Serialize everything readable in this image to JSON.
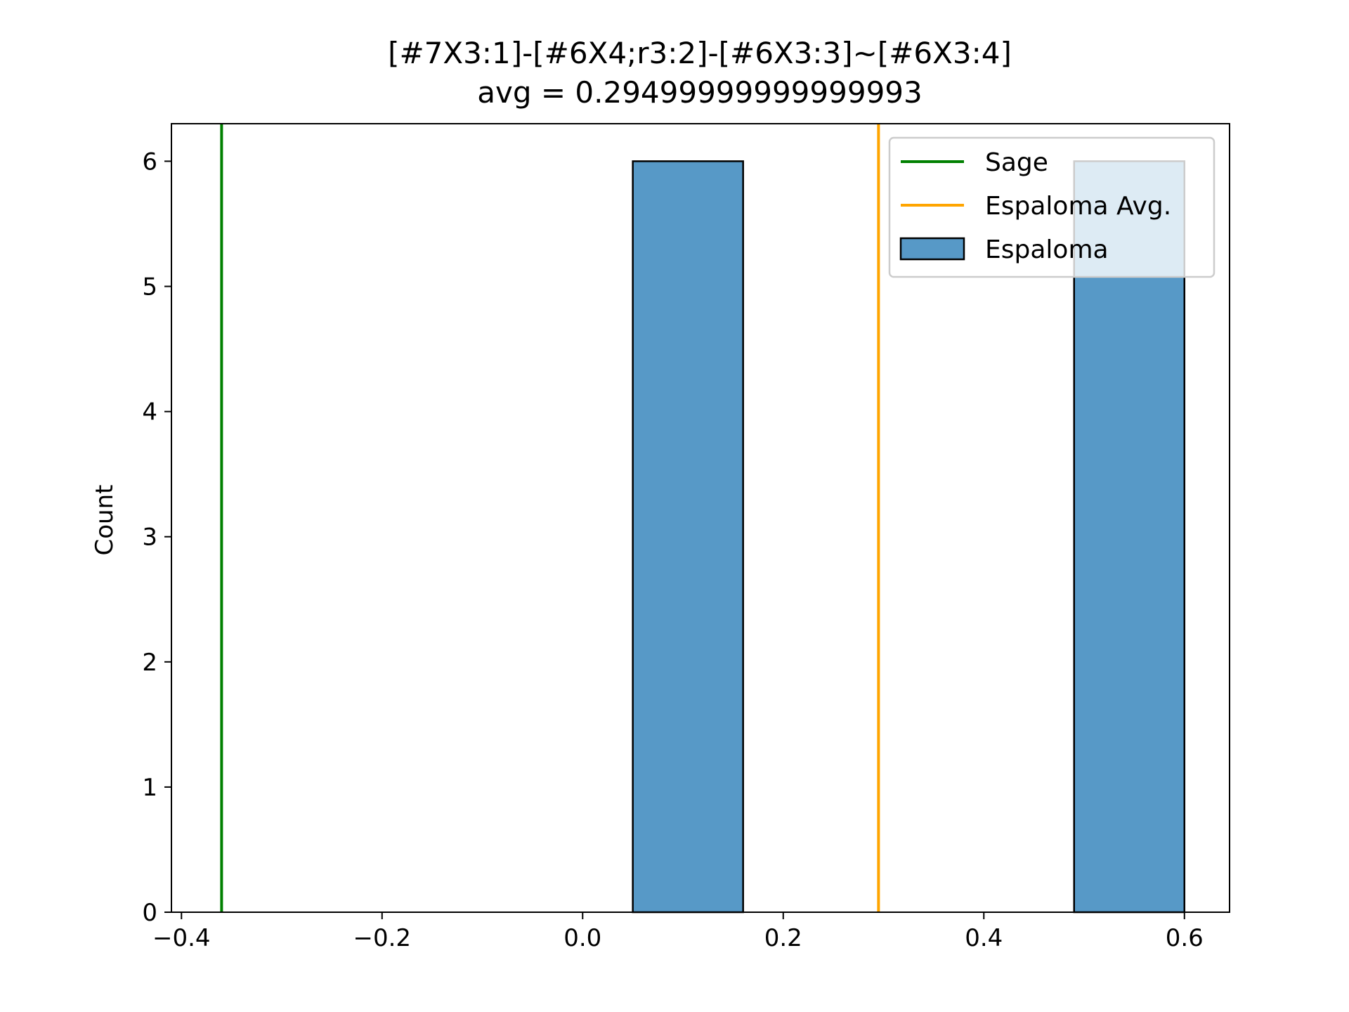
{
  "chart_data": {
    "type": "bar",
    "title": "[#7X3:1]-[#6X4;r3:2]-[#6X3:3]~[#6X3:4]",
    "subtitle": "avg = 0.29499999999999993",
    "xlabel": "",
    "ylabel": "Count",
    "xlim": [
      -0.41,
      0.645
    ],
    "ylim": [
      0,
      6.3
    ],
    "x_ticks": [
      -0.4,
      -0.2,
      0.0,
      0.2,
      0.4,
      0.6
    ],
    "x_tick_labels": [
      "−0.4",
      "−0.2",
      "0.0",
      "0.2",
      "0.4",
      "0.6"
    ],
    "y_ticks": [
      0,
      1,
      2,
      3,
      4,
      5,
      6
    ],
    "y_tick_labels": [
      "0",
      "1",
      "2",
      "3",
      "4",
      "5",
      "6"
    ],
    "grid": false,
    "legend_position": "top-right",
    "histogram": {
      "name": "Espaloma",
      "color": "#5799c7",
      "edge_color": "#000000",
      "bins": [
        {
          "x0": 0.05,
          "x1": 0.16,
          "count": 6
        },
        {
          "x0": 0.16,
          "x1": 0.27,
          "count": 0
        },
        {
          "x0": 0.27,
          "x1": 0.38,
          "count": 0
        },
        {
          "x0": 0.38,
          "x1": 0.49,
          "count": 0
        },
        {
          "x0": 0.49,
          "x1": 0.6,
          "count": 6
        }
      ]
    },
    "vlines": [
      {
        "name": "Sage",
        "x": -0.36,
        "color": "#008000"
      },
      {
        "name": "Espaloma Avg.",
        "x": 0.295,
        "color": "#ffa500"
      }
    ],
    "legend": [
      {
        "label": "Sage",
        "kind": "line",
        "color": "#008000"
      },
      {
        "label": "Espaloma Avg.",
        "kind": "line",
        "color": "#ffa500"
      },
      {
        "label": "Espaloma",
        "kind": "patch",
        "color": "#5799c7"
      }
    ]
  }
}
